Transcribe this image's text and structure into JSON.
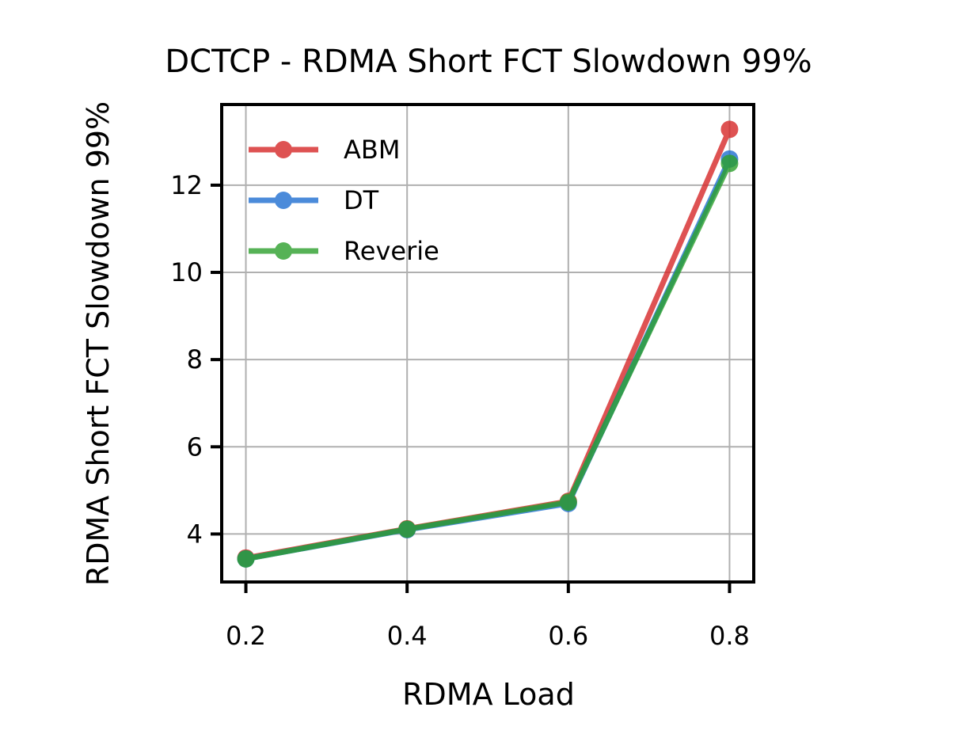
{
  "chart_data": {
    "type": "line",
    "title": "DCTCP - RDMA Short FCT Slowdown 99%",
    "xlabel": "RDMA Load",
    "ylabel": "RDMA Short FCT Slowdown 99%",
    "x": [
      0.2,
      0.4,
      0.6,
      0.8
    ],
    "xlim": [
      0.17,
      0.83
    ],
    "ylim": [
      2.9,
      13.85
    ],
    "xticks": [
      "0.2",
      "0.4",
      "0.6",
      "0.8"
    ],
    "yticks": [
      "4",
      "6",
      "8",
      "10",
      "12"
    ],
    "grid": true,
    "legend_position": "upper-left",
    "series": [
      {
        "name": "ABM",
        "color": "#d62728",
        "values": [
          3.45,
          4.12,
          4.75,
          13.28
        ]
      },
      {
        "name": "DT",
        "color": "#1f6fd1",
        "values": [
          3.43,
          4.1,
          4.7,
          12.6
        ]
      },
      {
        "name": "Reverie",
        "color": "#2ca02c",
        "values": [
          3.43,
          4.11,
          4.73,
          12.5
        ]
      }
    ]
  }
}
